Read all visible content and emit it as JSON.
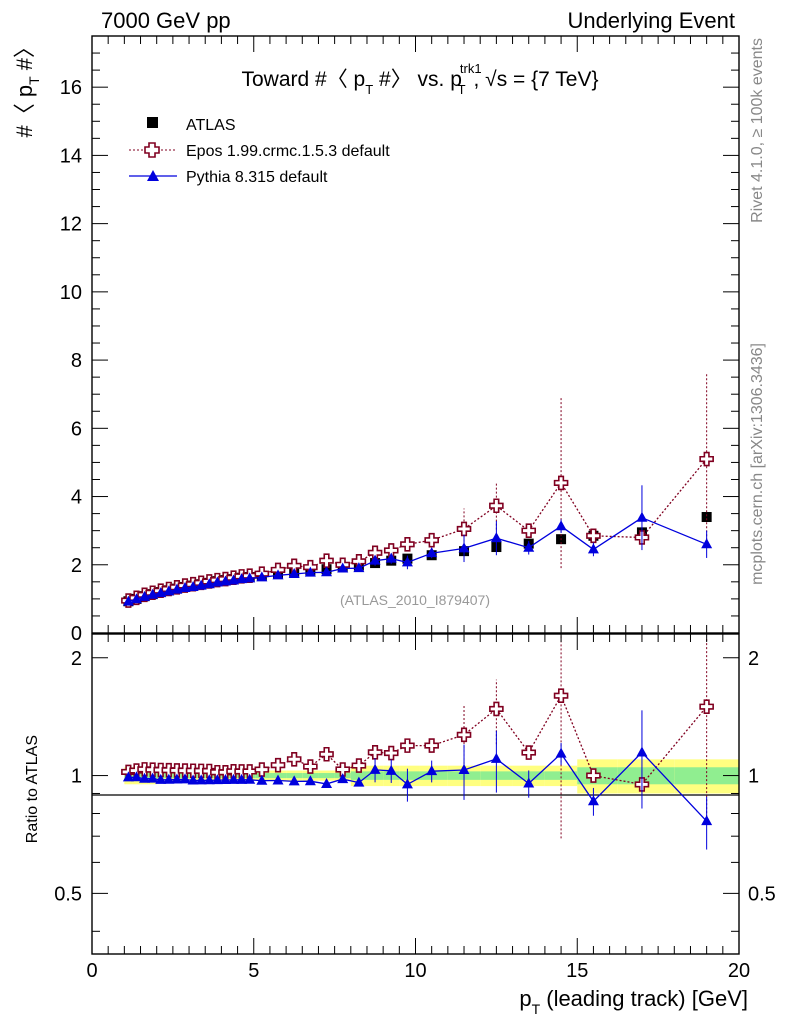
{
  "header": {
    "left": "7000 GeV pp",
    "right": "Underlying Event"
  },
  "side": {
    "top": "Rivet 4.1.0, ≥ 100k events",
    "bottom": "mcplots.cern.ch [arXiv:1306.3436]"
  },
  "title": {
    "pre": "Toward #〈 p",
    "sub1": "T",
    "mid": " #〉 vs. p",
    "sup": "trk1",
    "sub2": "T",
    "post": ", √s = {7 TeV}"
  },
  "watermark": "(ATLAS_2010_I879407)",
  "yaxis_main": {
    "pre": "#〈 p",
    "sub": "T",
    "post": " #〉"
  },
  "yaxis_ratio": "Ratio to ATLAS",
  "xaxis": {
    "pre": "p",
    "sub": "T",
    "post": " (leading track) [GeV]"
  },
  "legend": [
    {
      "label": "ATLAS",
      "marker": "square"
    },
    {
      "label": "Epos 1.99.crmc.1.5.3 default",
      "marker": "open-cross"
    },
    {
      "label": "Pythia 8.315 default",
      "marker": "triangle"
    }
  ],
  "colors": {
    "atlas": "#000000",
    "epos": "#800020",
    "pythia": "#0000dd",
    "band_inner": "#90ee90",
    "band_outer": "#ffff80"
  },
  "chart_data": {
    "type": "scatter",
    "xlim": [
      0,
      20
    ],
    "main": {
      "ylim": [
        0,
        17.5
      ],
      "yticks": [
        0,
        2,
        4,
        6,
        8,
        10,
        12,
        14,
        16
      ]
    },
    "ratio": {
      "ylim": [
        0.35,
        2.3
      ],
      "scale": "log",
      "yticks": [
        0.5,
        1,
        2
      ]
    },
    "xticks": [
      0,
      5,
      10,
      15,
      20
    ],
    "x": [
      1.125,
      1.375,
      1.625,
      1.875,
      2.125,
      2.375,
      2.625,
      2.875,
      3.125,
      3.375,
      3.625,
      3.875,
      4.125,
      4.375,
      4.625,
      4.875,
      5.25,
      5.75,
      6.25,
      6.75,
      7.25,
      7.75,
      8.25,
      8.75,
      9.25,
      9.75,
      10.5,
      11.5,
      12.5,
      13.5,
      14.5,
      15.5,
      17,
      19
    ],
    "series": [
      {
        "name": "ATLAS",
        "values": [
          0.93,
          1.0,
          1.08,
          1.14,
          1.2,
          1.25,
          1.3,
          1.35,
          1.39,
          1.43,
          1.47,
          1.52,
          1.55,
          1.58,
          1.62,
          1.64,
          1.68,
          1.74,
          1.79,
          1.83,
          1.87,
          1.93,
          1.98,
          2.05,
          2.12,
          2.18,
          2.28,
          2.4,
          2.52,
          2.62,
          2.75,
          2.85,
          2.95,
          3.4
        ]
      },
      {
        "name": "Epos 1.99.crmc.1.5.3 default",
        "values": [
          0.95,
          1.03,
          1.12,
          1.18,
          1.24,
          1.29,
          1.34,
          1.39,
          1.43,
          1.47,
          1.51,
          1.55,
          1.58,
          1.62,
          1.66,
          1.68,
          1.74,
          1.85,
          1.97,
          1.93,
          2.12,
          2.0,
          2.1,
          2.35,
          2.42,
          2.6,
          2.72,
          3.05,
          3.73,
          3.0,
          4.4,
          2.85,
          2.8,
          5.1
        ],
        "errors": [
          0,
          0,
          0,
          0,
          0,
          0,
          0,
          0,
          0,
          0,
          0,
          0,
          0,
          0,
          0,
          0,
          0,
          0,
          0,
          0,
          0,
          0,
          0,
          0,
          0,
          0,
          0,
          0.6,
          0.7,
          0,
          2.5,
          0,
          0,
          2.5
        ]
      },
      {
        "name": "Pythia 8.315 default",
        "values": [
          0.92,
          0.99,
          1.06,
          1.12,
          1.17,
          1.22,
          1.27,
          1.32,
          1.35,
          1.39,
          1.43,
          1.48,
          1.51,
          1.54,
          1.58,
          1.6,
          1.63,
          1.69,
          1.73,
          1.77,
          1.78,
          1.89,
          1.9,
          2.12,
          2.18,
          2.07,
          2.34,
          2.48,
          2.78,
          2.5,
          3.13,
          2.45,
          3.38,
          2.6
        ],
        "errors": [
          0,
          0,
          0,
          0,
          0,
          0,
          0,
          0,
          0,
          0,
          0,
          0,
          0,
          0,
          0,
          0,
          0,
          0,
          0,
          0,
          0,
          0,
          0,
          0.15,
          0.15,
          0.2,
          0.15,
          0.4,
          0.5,
          0.2,
          0.2,
          0.2,
          0.95,
          0.4
        ]
      }
    ]
  }
}
